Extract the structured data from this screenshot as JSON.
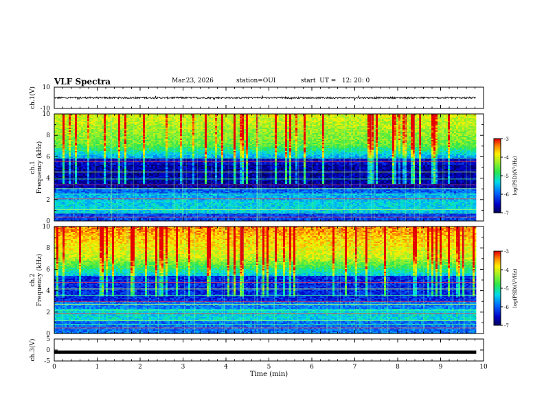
{
  "header": {
    "title": "VLF Spectra",
    "date": "Mar.23, 2026",
    "station": "station=OUI",
    "start": "start  UT =   12: 20: 0"
  },
  "chart_data": [
    {
      "type": "line",
      "name": "ch.1 waveform",
      "ylabel": "ch.1(V)",
      "ylim": [
        -10,
        10
      ],
      "yticks": [
        10,
        -10
      ],
      "x_unit": "min",
      "xlim": [
        0,
        10
      ],
      "data_end_min": 9.83,
      "level": 0,
      "description_value": "noisy waveform centred near 0 V, amplitude about 1 V"
    },
    {
      "type": "heatmap",
      "name": "ch.1 spectrogram",
      "ylabel": "ch.1\nFrequency (kHz)",
      "ylim": [
        0,
        10
      ],
      "yticks": [
        0,
        2,
        4,
        6,
        8,
        10
      ],
      "colorbar": {
        "label": "log(PSD)(V²/Hz)",
        "range": [
          -7,
          -3
        ],
        "ticks": [
          -3,
          -4,
          -5,
          -6,
          -7
        ]
      }
    },
    {
      "type": "heatmap",
      "name": "ch.2 spectrogram",
      "ylabel": "ch.2\nFrequency (kHz)",
      "ylim": [
        0,
        10
      ],
      "yticks": [
        0,
        2,
        4,
        6,
        8,
        10
      ],
      "colorbar": {
        "label": "log(PSD)(V²/Hz)",
        "range": [
          -7,
          -3
        ],
        "ticks": [
          -3,
          -4,
          -5,
          -6,
          -7
        ]
      }
    },
    {
      "type": "line",
      "name": "ch.3 waveform",
      "ylabel": "ch.3(V)",
      "ylim": [
        -5,
        5
      ],
      "yticks": [
        5,
        0,
        -5
      ],
      "level": -1.0,
      "xlabel": "Time (min)",
      "xlim": [
        0,
        10
      ],
      "xticks": [
        0,
        1,
        2,
        3,
        4,
        5,
        6,
        7,
        8,
        9,
        10
      ]
    }
  ]
}
